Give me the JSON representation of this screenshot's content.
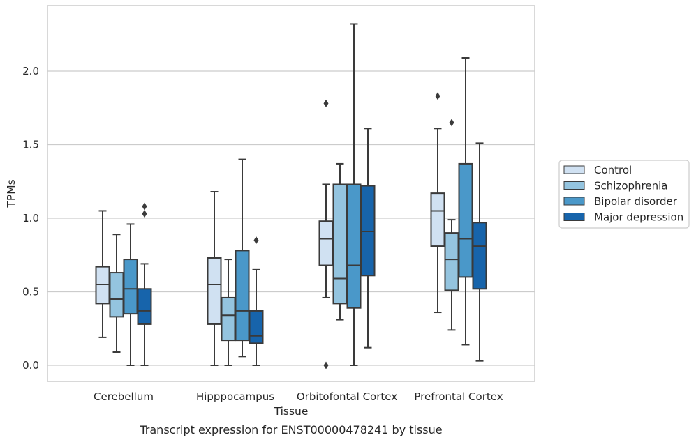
{
  "caption": "Transcript expression for ENST00000478241 by tissue",
  "colors": {
    "Control": "#d0e1f2",
    "Schizophrenia": "#94c4df",
    "Bipolar disorder": "#4a98c9",
    "Major depression": "#1764ab",
    "line": "#3a3a3a",
    "grid": "#cccccc",
    "frame": "#cccccc"
  },
  "chart_data": {
    "type": "box",
    "title": "",
    "xlabel": "Tissue",
    "ylabel": "TPMs",
    "categories": [
      "Cerebellum",
      "Hipppocampus",
      "Orbitofontal Cortex",
      "Prefrontal Cortex"
    ],
    "yticks": [
      "0.0",
      "0.5",
      "1.0",
      "1.5",
      "2.0"
    ],
    "ylim": [
      -0.11,
      2.45
    ],
    "grid": "horizontal",
    "legend_position": "right",
    "series": [
      {
        "name": "Control",
        "boxes": [
          {
            "whislo": 0.19,
            "q1": 0.42,
            "med": 0.55,
            "q3": 0.67,
            "whishi": 1.05,
            "fliers": []
          },
          {
            "whislo": 0.0,
            "q1": 0.28,
            "med": 0.55,
            "q3": 0.73,
            "whishi": 1.18,
            "fliers": []
          },
          {
            "whislo": 0.46,
            "q1": 0.68,
            "med": 0.86,
            "q3": 0.98,
            "whishi": 1.23,
            "fliers": [
              0.0,
              1.78
            ]
          },
          {
            "whislo": 0.36,
            "q1": 0.81,
            "med": 1.05,
            "q3": 1.17,
            "whishi": 1.61,
            "fliers": [
              1.83
            ]
          }
        ]
      },
      {
        "name": "Schizophrenia",
        "boxes": [
          {
            "whislo": 0.09,
            "q1": 0.33,
            "med": 0.45,
            "q3": 0.63,
            "whishi": 0.89,
            "fliers": []
          },
          {
            "whislo": 0.0,
            "q1": 0.17,
            "med": 0.34,
            "q3": 0.46,
            "whishi": 0.72,
            "fliers": []
          },
          {
            "whislo": 0.31,
            "q1": 0.42,
            "med": 0.59,
            "q3": 1.23,
            "whishi": 1.37,
            "fliers": []
          },
          {
            "whislo": 0.24,
            "q1": 0.51,
            "med": 0.72,
            "q3": 0.9,
            "whishi": 0.99,
            "fliers": [
              1.65
            ]
          }
        ]
      },
      {
        "name": "Bipolar disorder",
        "boxes": [
          {
            "whislo": 0.0,
            "q1": 0.35,
            "med": 0.52,
            "q3": 0.72,
            "whishi": 0.96,
            "fliers": []
          },
          {
            "whislo": 0.06,
            "q1": 0.17,
            "med": 0.37,
            "q3": 0.78,
            "whishi": 1.4,
            "fliers": []
          },
          {
            "whislo": 0.0,
            "q1": 0.39,
            "med": 0.68,
            "q3": 1.23,
            "whishi": 2.32,
            "fliers": []
          },
          {
            "whislo": 0.14,
            "q1": 0.6,
            "med": 0.86,
            "q3": 1.37,
            "whishi": 2.09,
            "fliers": []
          }
        ]
      },
      {
        "name": "Major depression",
        "boxes": [
          {
            "whislo": 0.0,
            "q1": 0.28,
            "med": 0.37,
            "q3": 0.52,
            "whishi": 0.69,
            "fliers": [
              1.03,
              1.08
            ]
          },
          {
            "whislo": 0.0,
            "q1": 0.15,
            "med": 0.2,
            "q3": 0.37,
            "whishi": 0.65,
            "fliers": [
              0.85
            ]
          },
          {
            "whislo": 0.12,
            "q1": 0.61,
            "med": 0.91,
            "q3": 1.22,
            "whishi": 1.61,
            "fliers": []
          },
          {
            "whislo": 0.03,
            "q1": 0.52,
            "med": 0.81,
            "q3": 0.97,
            "whishi": 1.51,
            "fliers": []
          }
        ]
      }
    ]
  }
}
